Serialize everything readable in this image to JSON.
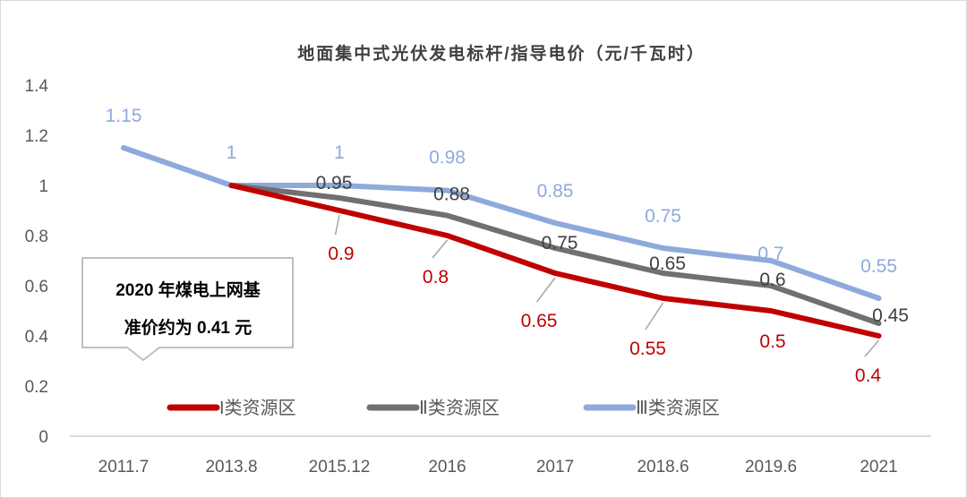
{
  "chart_data": {
    "type": "line",
    "title": "地面集中式光伏发电标杆/指导电价（元/千瓦时）",
    "categories": [
      "2011.7",
      "2013.8",
      "2015.12",
      "2016",
      "2017",
      "2018.6",
      "2019.6",
      "2021"
    ],
    "ylim": [
      0,
      1.4
    ],
    "yticks": [
      "0",
      "0.2",
      "0.4",
      "0.6",
      "0.8",
      "1",
      "1.2",
      "1.4"
    ],
    "grid": false,
    "legend_position": "bottom-inside",
    "series": [
      {
        "name": "I类资源区",
        "color": "#c00000",
        "values": [
          null,
          1,
          0.9,
          0.8,
          0.65,
          0.55,
          0.5,
          0.4
        ],
        "labels": [
          "",
          "",
          "0.9",
          "0.8",
          "0.65",
          "0.55",
          "0.5",
          "0.4"
        ]
      },
      {
        "name": "Ⅱ类资源区",
        "color": "#707070",
        "values": [
          null,
          1,
          0.95,
          0.88,
          0.75,
          0.65,
          0.6,
          0.45
        ],
        "labels": [
          "",
          "",
          "0.95",
          "0.88",
          "0.75",
          "0.65",
          "0.6",
          "0.45"
        ]
      },
      {
        "name": "Ⅲ类资源区",
        "color": "#8eaadb",
        "values": [
          1.15,
          1,
          1,
          0.98,
          0.85,
          0.75,
          0.7,
          0.55
        ],
        "labels": [
          "1.15",
          "1",
          "1",
          "0.98",
          "0.85",
          "0.75",
          "0.7",
          "0.55"
        ]
      }
    ],
    "annotation": {
      "line1": "2020 年煤电上网基",
      "line2": "准价约为 0.41 元"
    }
  }
}
